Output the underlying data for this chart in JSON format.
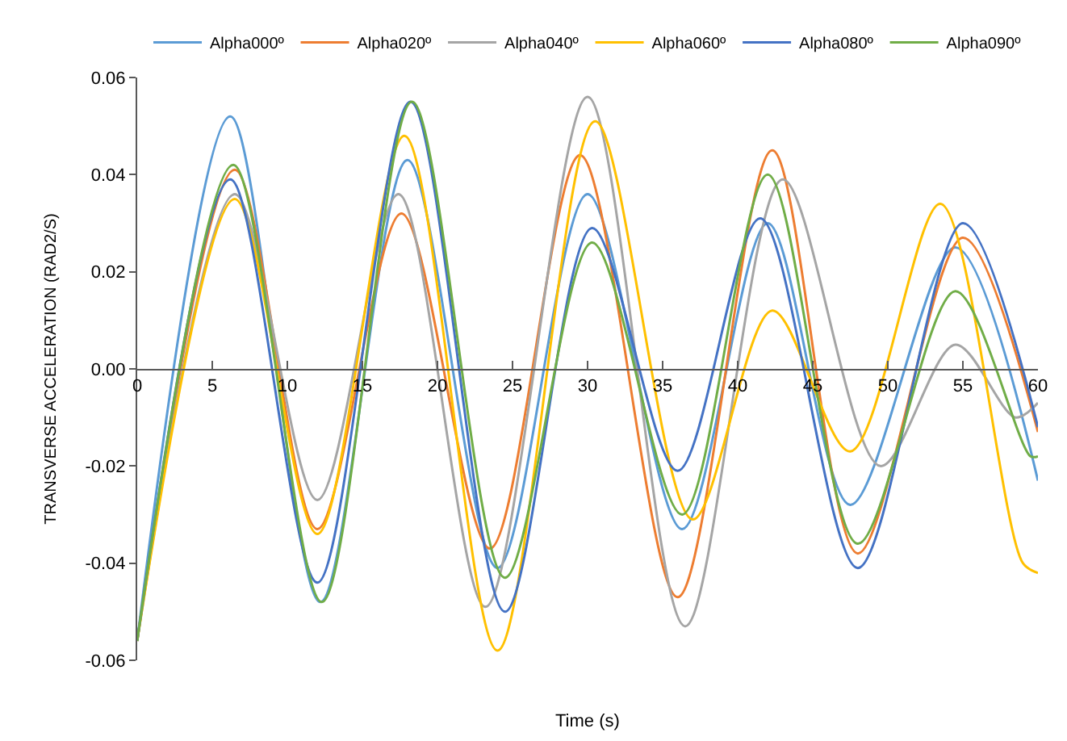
{
  "chart_data": {
    "type": "line",
    "xlabel": "Time (s)",
    "ylabel": "TRANSVERSE ACCELERATION (RAD2/S)",
    "xlim": [
      0,
      60
    ],
    "xticks": [
      0,
      5,
      10,
      15,
      20,
      25,
      30,
      35,
      40,
      45,
      50,
      55,
      60
    ],
    "ylim": [
      -0.06,
      0.06
    ],
    "yticks": [
      {
        "value": -0.06,
        "label": "-0.06"
      },
      {
        "value": -0.04,
        "label": "-0.04"
      },
      {
        "value": -0.02,
        "label": "-0.02"
      },
      {
        "value": 0,
        "label": "0.00"
      },
      {
        "value": 0.02,
        "label": "0.02"
      },
      {
        "value": 0.04,
        "label": "0.04"
      },
      {
        "value": 0.06,
        "label": "0.06"
      }
    ],
    "legend": "top",
    "marker": "none",
    "line_style": "solid",
    "series": [
      {
        "name": "Alpha000º",
        "color": "#5b9bd5",
        "x": [
          0,
          6.2,
          12.2,
          18,
          24,
          30,
          36.3,
          42,
          47.5,
          54.5,
          60
        ],
        "values": [
          -0.056,
          0.052,
          -0.048,
          0.043,
          -0.041,
          0.036,
          -0.033,
          0.03,
          -0.028,
          0.025,
          -0.023
        ]
      },
      {
        "name": "Alpha020º",
        "color": "#ed7d31",
        "x": [
          0,
          6.5,
          12,
          17.6,
          23.5,
          29.5,
          36,
          42.3,
          48,
          55,
          60
        ],
        "values": [
          -0.056,
          0.041,
          -0.033,
          0.032,
          -0.037,
          0.044,
          -0.047,
          0.045,
          -0.038,
          0.027,
          -0.013
        ]
      },
      {
        "name": "Alpha040º",
        "color": "#a5a5a5",
        "x": [
          0,
          6.5,
          12,
          17.4,
          23.2,
          30,
          36.5,
          43,
          49.5,
          54.5,
          58.5,
          60
        ],
        "values": [
          -0.056,
          0.036,
          -0.027,
          0.036,
          -0.049,
          0.056,
          -0.053,
          0.039,
          -0.02,
          0.005,
          -0.01,
          -0.007
        ]
      },
      {
        "name": "Alpha060º",
        "color": "#ffc000",
        "x": [
          0,
          6.5,
          12,
          17.8,
          24,
          30.5,
          37,
          42.3,
          47.5,
          53.5,
          59,
          60
        ],
        "values": [
          -0.056,
          0.035,
          -0.034,
          0.048,
          -0.058,
          0.051,
          -0.031,
          0.012,
          -0.017,
          0.034,
          -0.04,
          -0.042
        ]
      },
      {
        "name": "Alpha080º",
        "color": "#4472c4",
        "x": [
          0,
          6.2,
          12,
          18.2,
          24.5,
          30.3,
          36,
          41.5,
          48,
          55,
          60
        ],
        "values": [
          -0.056,
          0.039,
          -0.044,
          0.055,
          -0.05,
          0.029,
          -0.021,
          0.031,
          -0.041,
          0.03,
          -0.012
        ]
      },
      {
        "name": "Alpha090º",
        "color": "#70ad47",
        "x": [
          0,
          6.4,
          12.3,
          18.3,
          24.5,
          30.3,
          36.3,
          42,
          48,
          54.5,
          59.5,
          60
        ],
        "values": [
          -0.056,
          0.042,
          -0.048,
          0.055,
          -0.043,
          0.026,
          -0.03,
          0.04,
          -0.036,
          0.016,
          -0.018,
          -0.018
        ]
      }
    ]
  }
}
